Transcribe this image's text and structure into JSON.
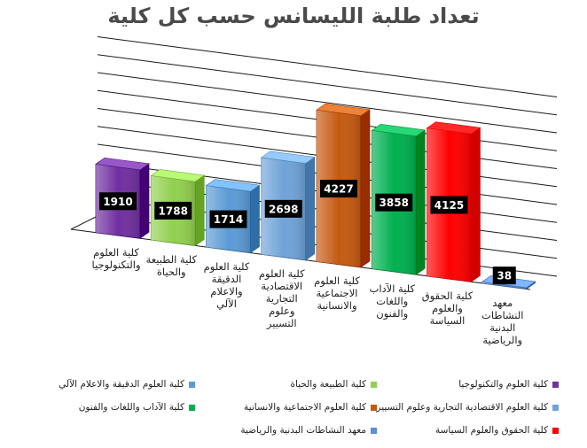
{
  "chart_data": {
    "type": "bar",
    "title": "تعداد طلبة الليسانس حسب كل كلية",
    "categories": [
      "كلية العلوم والتكنولوجيا",
      "كلية الطبيعة والحياة",
      "كلية العلوم الدقيقة والاعلام الآلي",
      "كلية العلوم الاقتصادية التجارية وعلوم التسيير",
      "كلية العلوم الاجتماعية والانسانية",
      "كلية الآداب واللغات والفنون",
      "كلية الحقوق والعلوم السياسة",
      "معهد النشاطات البدنية والرياضية"
    ],
    "category_labels": [
      "كلية العلوم\nوالتكنولوجيا",
      "كلية الطبيعة\nوالحياة",
      "كلية العلوم\nالدقيقة\nوالاعلام\nالآلي",
      "كلية العلوم\nالاقتصادية\nالتجارية\nوعلوم\nالتسيير",
      "كلية العلوم\nالاجتماعية\nوالانسانية",
      "كلية الآداب\nواللغات\nوالفنون",
      "كلية الحقوق\nوالعلوم\nالسياسة",
      "معهد\nالنشاطات\nالبدنية\nوالرياضية"
    ],
    "values": [
      1910,
      1788,
      1714,
      2698,
      4227,
      3858,
      4125,
      38
    ],
    "colors": [
      "#7030a0",
      "#92d050",
      "#5b9bd5",
      "#6fa3d8",
      "#c55a11",
      "#00b050",
      "#ff0000",
      "#5b8ed6"
    ],
    "ylim": [
      0,
      5000
    ],
    "grid": true,
    "three_d": true,
    "legend_position": "bottom",
    "legend": [
      "كلية العلوم والتكنولوجيا",
      "كلية الطبيعة والحياة",
      "كلية العلوم الدقيقة والاعلام الآلي",
      "كلية العلوم الاقتصادية التجارية وعلوم التسيير",
      "كلية العلوم الاجتماعية والانسانية",
      "كلية الآداب واللغات والفنون",
      "كلية الحقوق والعلوم السياسة",
      "معهد النشاطات البدنية والرياضية"
    ]
  }
}
